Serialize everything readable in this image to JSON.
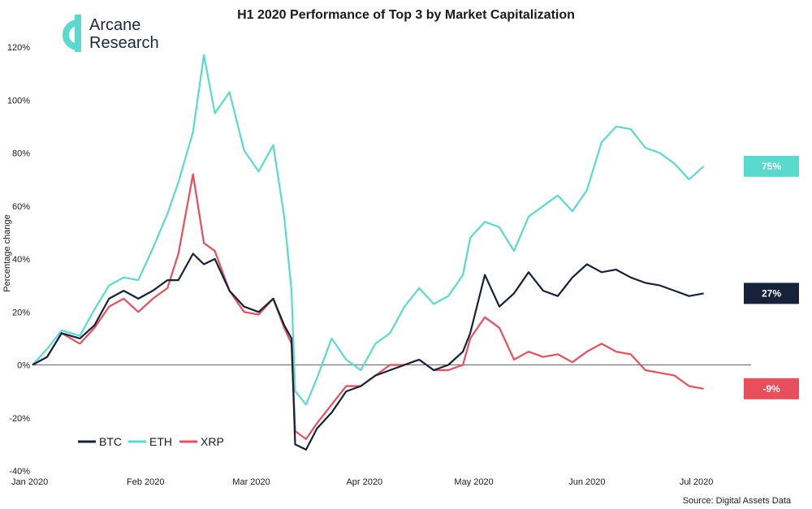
{
  "brand": {
    "line1": "Arcane",
    "line2": "Research",
    "logo_color": "#5ad9cf"
  },
  "source": "Source: Digital Assets Data",
  "colors": {
    "BTC": "#15223a",
    "ETH": "#5ad9cf",
    "XRP": "#e84f5c",
    "zero_line": "#666666"
  },
  "chart_data": {
    "type": "line",
    "title": "H1 2020 Performance of Top 3 by Market Capitalization",
    "xlabel": "",
    "ylabel": "Percentage change",
    "ylim": [
      -40,
      120
    ],
    "yticks": [
      -40,
      -20,
      0,
      20,
      40,
      60,
      80,
      100,
      120
    ],
    "ytick_labels": [
      "-40%",
      "-20%",
      "0%",
      "20%",
      "40%",
      "60%",
      "80%",
      "100%",
      "120%"
    ],
    "x_unit": "date",
    "xlim": [
      "2020-01-01",
      "2020-07-16"
    ],
    "xticks": [
      "2020-01-01",
      "2020-02-01",
      "2020-03-01",
      "2020-04-01",
      "2020-05-01",
      "2020-06-01",
      "2020-07-01"
    ],
    "xtick_labels": [
      "Jan 2020",
      "Feb 2020",
      "Mar 2020",
      "Apr 2020",
      "May 2020",
      "Jun 2020",
      "Jul 2020"
    ],
    "legend": "bottom-left",
    "grid": false,
    "x": [
      "2020-01-01",
      "2020-01-05",
      "2020-01-09",
      "2020-01-14",
      "2020-01-18",
      "2020-01-22",
      "2020-01-26",
      "2020-01-30",
      "2020-02-03",
      "2020-02-07",
      "2020-02-10",
      "2020-02-14",
      "2020-02-17",
      "2020-02-20",
      "2020-02-24",
      "2020-02-28",
      "2020-03-03",
      "2020-03-07",
      "2020-03-10",
      "2020-03-12",
      "2020-03-13",
      "2020-03-16",
      "2020-03-19",
      "2020-03-23",
      "2020-03-27",
      "2020-03-31",
      "2020-04-04",
      "2020-04-08",
      "2020-04-12",
      "2020-04-16",
      "2020-04-20",
      "2020-04-24",
      "2020-04-28",
      "2020-04-30",
      "2020-05-04",
      "2020-05-08",
      "2020-05-12",
      "2020-05-16",
      "2020-05-20",
      "2020-05-24",
      "2020-05-28",
      "2020-06-01",
      "2020-06-05",
      "2020-06-09",
      "2020-06-13",
      "2020-06-17",
      "2020-06-21",
      "2020-06-25",
      "2020-06-29",
      "2020-07-03"
    ],
    "series": [
      {
        "name": "BTC",
        "values": [
          0,
          3,
          12,
          10,
          15,
          25,
          28,
          25,
          28,
          32,
          32,
          42,
          38,
          40,
          28,
          22,
          20,
          25,
          15,
          10,
          -30,
          -32,
          -24,
          -18,
          -10,
          -8,
          -4,
          -2,
          0,
          2,
          -2,
          0,
          5,
          12,
          34,
          22,
          27,
          35,
          28,
          26,
          33,
          38,
          35,
          36,
          33,
          31,
          30,
          28,
          26,
          27
        ]
      },
      {
        "name": "ETH",
        "values": [
          0,
          6,
          13,
          11,
          21,
          30,
          33,
          32,
          44,
          57,
          69,
          88,
          117,
          95,
          103,
          81,
          73,
          83,
          56,
          28,
          -10,
          -15,
          -5,
          10,
          2,
          -2,
          8,
          12,
          22,
          29,
          23,
          26,
          34,
          48,
          54,
          52,
          43,
          56,
          60,
          64,
          58,
          66,
          84,
          90,
          89,
          82,
          80,
          76,
          70,
          75
        ]
      },
      {
        "name": "XRP",
        "values": [
          0,
          3,
          12,
          8,
          14,
          22,
          25,
          20,
          25,
          29,
          42,
          72,
          46,
          43,
          28,
          20,
          19,
          25,
          14,
          8,
          -25,
          -28,
          -22,
          -15,
          -8,
          -8,
          -4,
          0,
          0,
          2,
          -2,
          -2,
          0,
          10,
          18,
          14,
          2,
          5,
          3,
          4,
          1,
          5,
          8,
          5,
          4,
          -2,
          -3,
          -4,
          -8,
          -9
        ]
      }
    ],
    "end_labels": [
      {
        "series": "BTC",
        "label": "27%"
      },
      {
        "series": "ETH",
        "label": "75%"
      },
      {
        "series": "XRP",
        "label": "-9%"
      }
    ]
  }
}
